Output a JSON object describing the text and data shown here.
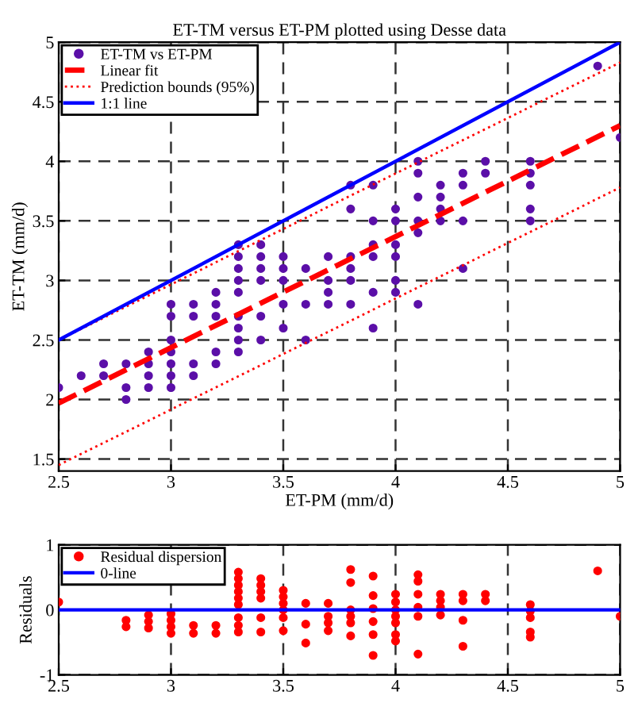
{
  "chart_data": [
    {
      "type": "scatter",
      "title": "ET-TM versus ET-PM plotted using Desse data",
      "xlabel": "ET-PM (mm/d)",
      "ylabel": "ET-TM (mm/d)",
      "xlim": [
        2.5,
        5
      ],
      "ylim": [
        1.4,
        5
      ],
      "xticks": [
        2.5,
        3,
        3.5,
        4,
        4.5,
        5
      ],
      "yticks": [
        1.5,
        2,
        2.5,
        3,
        3.5,
        4,
        4.5,
        5
      ],
      "grid": true,
      "legend": "top left",
      "series": [
        {
          "name": "ET-TM vs ET-PM",
          "marker": "circle",
          "color": "#5b0fa8",
          "x": [
            2.5,
            2.6,
            2.7,
            2.7,
            2.8,
            2.8,
            2.8,
            2.9,
            2.9,
            2.9,
            2.9,
            3.0,
            3.0,
            3.0,
            3.0,
            3.0,
            3.0,
            3.0,
            3.1,
            3.1,
            3.1,
            3.1,
            3.2,
            3.2,
            3.2,
            3.2,
            3.2,
            3.3,
            3.3,
            3.3,
            3.3,
            3.3,
            3.3,
            3.3,
            3.3,
            3.3,
            3.4,
            3.4,
            3.4,
            3.4,
            3.4,
            3.4,
            3.5,
            3.5,
            3.5,
            3.5,
            3.5,
            3.6,
            3.6,
            3.6,
            3.7,
            3.7,
            3.7,
            3.7,
            3.8,
            3.8,
            3.8,
            3.8,
            3.8,
            3.8,
            3.9,
            3.9,
            3.9,
            3.9,
            3.9,
            3.9,
            4.0,
            4.0,
            4.0,
            4.0,
            4.0,
            4.0,
            4.1,
            4.1,
            4.1,
            4.1,
            4.1,
            4.1,
            4.2,
            4.2,
            4.2,
            4.2,
            4.3,
            4.3,
            4.3,
            4.3,
            4.4,
            4.4,
            4.6,
            4.6,
            4.6,
            4.6,
            4.6,
            4.9,
            5.0
          ],
          "values": [
            2.1,
            2.2,
            2.3,
            2.2,
            2.3,
            2.1,
            2.0,
            2.4,
            2.3,
            2.2,
            2.1,
            2.8,
            2.7,
            2.5,
            2.4,
            2.3,
            2.2,
            2.1,
            2.8,
            2.7,
            2.3,
            2.2,
            2.9,
            2.8,
            2.7,
            2.4,
            2.3,
            3.3,
            3.2,
            3.1,
            3.0,
            2.9,
            2.7,
            2.6,
            2.5,
            2.4,
            3.3,
            3.2,
            3.1,
            3.0,
            2.7,
            2.5,
            3.2,
            3.1,
            3.0,
            2.8,
            2.6,
            3.1,
            2.8,
            2.5,
            3.2,
            3.0,
            2.9,
            2.8,
            3.8,
            3.6,
            3.2,
            3.1,
            3.0,
            2.8,
            3.8,
            3.5,
            3.3,
            3.2,
            2.9,
            2.6,
            3.6,
            3.5,
            3.3,
            3.2,
            3.0,
            2.9,
            4.0,
            3.9,
            3.7,
            3.5,
            3.4,
            2.8,
            3.8,
            3.7,
            3.6,
            3.5,
            3.9,
            3.8,
            3.5,
            3.1,
            4.0,
            3.9,
            4.0,
            3.9,
            3.8,
            3.6,
            3.5,
            4.8,
            4.2
          ]
        },
        {
          "name": "Linear fit",
          "type": "line",
          "line_style": "dashed",
          "color": "#ff0000",
          "x": [
            2.5,
            5
          ],
          "values": [
            1.97,
            4.3
          ]
        },
        {
          "name": "Prediction bounds (95%)",
          "type": "line",
          "line_style": "dotted",
          "color": "#ff0000",
          "x": [
            2.5,
            5
          ],
          "values": [
            2.5,
            4.83
          ]
        },
        {
          "type": "line",
          "line_style": "dotted",
          "color": "#ff0000",
          "x": [
            2.5,
            5
          ],
          "values": [
            1.45,
            3.78
          ]
        },
        {
          "name": "1:1 line",
          "type": "line",
          "marker": "none",
          "color": "#0000ff",
          "x": [
            2.5,
            5
          ],
          "values": [
            2.5,
            5
          ]
        }
      ]
    },
    {
      "type": "scatter",
      "ylabel": "Residuals",
      "xlim": [
        2.5,
        5
      ],
      "ylim": [
        -1,
        1
      ],
      "xticks": [
        2.5,
        3,
        3.5,
        4,
        4.5,
        5
      ],
      "yticks": [
        -1,
        0,
        1
      ],
      "grid": true,
      "legend": "top left",
      "series": [
        {
          "name": "Residual dispersion",
          "marker": "circle",
          "color": "#ff0000",
          "x": [
            2.5,
            2.8,
            2.8,
            2.9,
            2.9,
            2.9,
            3.0,
            3.0,
            3.0,
            3.0,
            3.1,
            3.1,
            3.2,
            3.2,
            3.3,
            3.3,
            3.3,
            3.3,
            3.3,
            3.3,
            3.3,
            3.3,
            3.3,
            3.4,
            3.4,
            3.4,
            3.4,
            3.4,
            3.4,
            3.5,
            3.5,
            3.5,
            3.5,
            3.5,
            3.5,
            3.6,
            3.6,
            3.6,
            3.7,
            3.7,
            3.7,
            3.7,
            3.8,
            3.8,
            3.8,
            3.8,
            3.8,
            3.8,
            3.9,
            3.9,
            3.9,
            3.9,
            3.9,
            3.9,
            4.0,
            4.0,
            4.0,
            4.0,
            4.0,
            4.0,
            4.0,
            4.1,
            4.1,
            4.1,
            4.1,
            4.1,
            4.1,
            4.2,
            4.2,
            4.2,
            4.2,
            4.3,
            4.3,
            4.3,
            4.3,
            4.4,
            4.4,
            4.6,
            4.6,
            4.6,
            4.6,
            4.6,
            4.9,
            5.0
          ],
          "values": [
            0.12,
            -0.16,
            -0.26,
            -0.08,
            -0.18,
            -0.28,
            -0.06,
            -0.16,
            -0.26,
            -0.36,
            -0.24,
            -0.36,
            -0.24,
            -0.36,
            0.58,
            0.48,
            0.38,
            0.28,
            0.18,
            0.08,
            -0.12,
            -0.24,
            -0.34,
            0.48,
            0.38,
            0.28,
            0.18,
            -0.12,
            -0.34,
            0.3,
            0.2,
            0.1,
            0,
            -0.12,
            -0.32,
            0.1,
            -0.22,
            -0.51,
            0.1,
            -0.1,
            -0.2,
            -0.32,
            0.62,
            0.42,
            0,
            -0.1,
            -0.2,
            -0.4,
            0.52,
            0.22,
            0.02,
            -0.18,
            -0.38,
            -0.7,
            0.24,
            0.12,
            0,
            -0.1,
            -0.2,
            -0.38,
            -0.48,
            0.54,
            0.44,
            0.24,
            0.04,
            -0.1,
            -0.68,
            0.24,
            0.14,
            0.04,
            -0.08,
            0.24,
            0.14,
            -0.16,
            -0.56,
            0.24,
            0.14,
            0.08,
            -0.02,
            -0.12,
            -0.34,
            -0.42,
            0.6,
            -0.1
          ]
        },
        {
          "name": "0-line",
          "type": "line",
          "marker": "none",
          "color": "#0000ff",
          "x": [
            2.5,
            5
          ],
          "values": [
            0,
            0
          ]
        }
      ]
    }
  ]
}
